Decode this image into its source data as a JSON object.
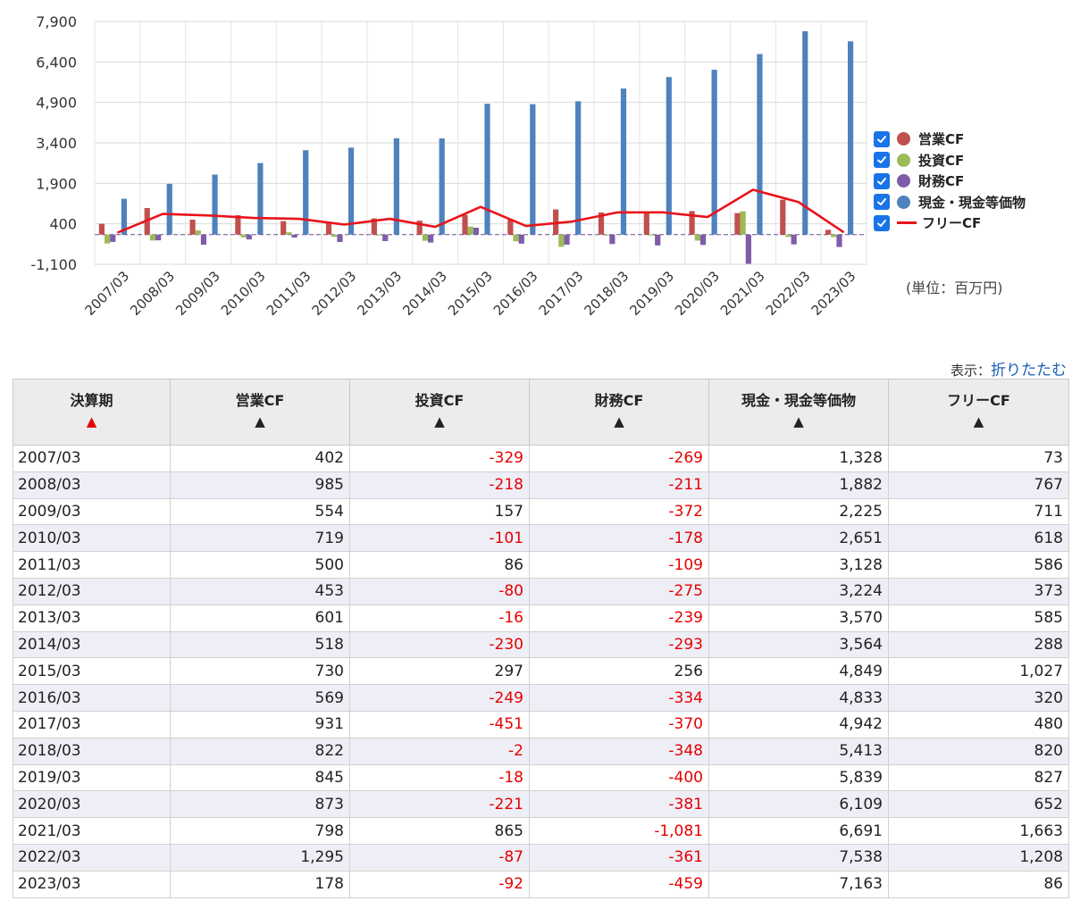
{
  "chart_data": {
    "type": "bar",
    "categories": [
      "2007/03",
      "2008/03",
      "2009/03",
      "2010/03",
      "2011/03",
      "2012/03",
      "2013/03",
      "2014/03",
      "2015/03",
      "2016/03",
      "2017/03",
      "2018/03",
      "2019/03",
      "2020/03",
      "2021/03",
      "2022/03",
      "2023/03"
    ],
    "series": [
      {
        "name": "営業CF",
        "color": "#c0504d",
        "type": "bar",
        "values": [
          402,
          985,
          554,
          719,
          500,
          453,
          601,
          518,
          730,
          569,
          931,
          822,
          845,
          873,
          798,
          1295,
          178
        ]
      },
      {
        "name": "投資CF",
        "color": "#9bbb59",
        "type": "bar",
        "values": [
          -329,
          -218,
          157,
          -101,
          86,
          -80,
          -16,
          -230,
          297,
          -249,
          -451,
          -2,
          -18,
          -221,
          865,
          -87,
          -92
        ]
      },
      {
        "name": "財務CF",
        "color": "#7e5ca8",
        "type": "bar",
        "values": [
          -269,
          -211,
          -372,
          -178,
          -109,
          -275,
          -239,
          -293,
          256,
          -334,
          -370,
          -348,
          -400,
          -381,
          -1081,
          -361,
          -459
        ]
      },
      {
        "name": "現金・現金等価物",
        "color": "#4f81bd",
        "type": "bar",
        "values": [
          1328,
          1882,
          2225,
          2651,
          3128,
          3224,
          3570,
          3564,
          4849,
          4833,
          4942,
          5413,
          5839,
          6109,
          6691,
          7538,
          7163
        ]
      },
      {
        "name": "フリーCF",
        "color": "#e8141b",
        "type": "line",
        "values": [
          73,
          767,
          711,
          618,
          586,
          373,
          585,
          288,
          1027,
          320,
          480,
          820,
          827,
          652,
          1663,
          1208,
          86
        ]
      }
    ],
    "yticks": [
      "7,900",
      "6,400",
      "4,900",
      "3,400",
      "1,900",
      "400",
      "-1,100"
    ],
    "ylim": [
      -1100,
      7900
    ],
    "legend_position": "right",
    "unit_label": "(単位：百万円)"
  },
  "display": {
    "label": "表示：",
    "link": "折りたたむ"
  },
  "table": {
    "headers": [
      {
        "label": "決算期",
        "arrow": "▲"
      },
      {
        "label": "営業CF",
        "arrow": "▲"
      },
      {
        "label": "投資CF",
        "arrow": "▲"
      },
      {
        "label": "財務CF",
        "arrow": "▲"
      },
      {
        "label": "現金・現金等価物",
        "arrow": "▲"
      },
      {
        "label": "フリーCF",
        "arrow": "▲"
      }
    ],
    "rows": [
      [
        "2007/03",
        "402",
        "-329",
        "-269",
        "1,328",
        "73"
      ],
      [
        "2008/03",
        "985",
        "-218",
        "-211",
        "1,882",
        "767"
      ],
      [
        "2009/03",
        "554",
        "157",
        "-372",
        "2,225",
        "711"
      ],
      [
        "2010/03",
        "719",
        "-101",
        "-178",
        "2,651",
        "618"
      ],
      [
        "2011/03",
        "500",
        "86",
        "-109",
        "3,128",
        "586"
      ],
      [
        "2012/03",
        "453",
        "-80",
        "-275",
        "3,224",
        "373"
      ],
      [
        "2013/03",
        "601",
        "-16",
        "-239",
        "3,570",
        "585"
      ],
      [
        "2014/03",
        "518",
        "-230",
        "-293",
        "3,564",
        "288"
      ],
      [
        "2015/03",
        "730",
        "297",
        "256",
        "4,849",
        "1,027"
      ],
      [
        "2016/03",
        "569",
        "-249",
        "-334",
        "4,833",
        "320"
      ],
      [
        "2017/03",
        "931",
        "-451",
        "-370",
        "4,942",
        "480"
      ],
      [
        "2018/03",
        "822",
        "-2",
        "-348",
        "5,413",
        "820"
      ],
      [
        "2019/03",
        "845",
        "-18",
        "-400",
        "5,839",
        "827"
      ],
      [
        "2020/03",
        "873",
        "-221",
        "-381",
        "6,109",
        "652"
      ],
      [
        "2021/03",
        "798",
        "865",
        "-1,081",
        "6,691",
        "1,663"
      ],
      [
        "2022/03",
        "1,295",
        "-87",
        "-361",
        "7,538",
        "1,208"
      ],
      [
        "2023/03",
        "178",
        "-92",
        "-459",
        "7,163",
        "86"
      ]
    ]
  }
}
